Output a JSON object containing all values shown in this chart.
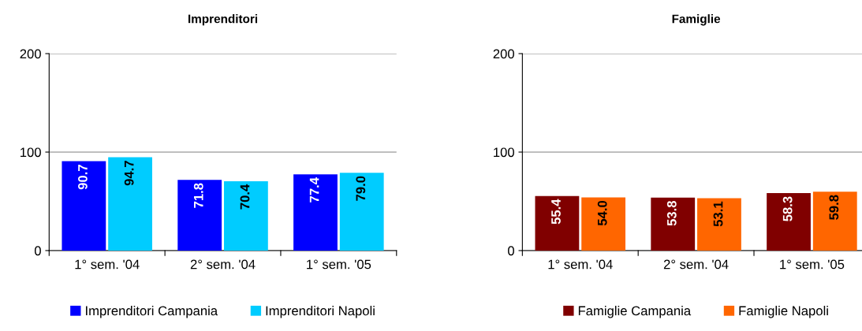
{
  "chart_data": [
    {
      "type": "bar",
      "title": "Imprenditori",
      "categories": [
        "1° sem. '04",
        "2° sem. '04",
        "1° sem. '05"
      ],
      "series": [
        {
          "name": "Imprenditori Campania",
          "color": "#0000ff",
          "values": [
            90.7,
            71.8,
            77.4
          ]
        },
        {
          "name": "Imprenditori Napoli",
          "color": "#00ccff",
          "values": [
            94.7,
            70.4,
            79.0
          ]
        }
      ],
      "ylim": [
        0,
        200
      ],
      "yticks": [
        0,
        100,
        200
      ],
      "grid": "y",
      "legend": "bottom",
      "value_labels": [
        [
          "90.7",
          "71.8",
          "77.4"
        ],
        [
          "94.7",
          "70.4",
          "79.0"
        ]
      ]
    },
    {
      "type": "bar",
      "title": "Famiglie",
      "categories": [
        "1° sem. '04",
        "2° sem. '04",
        "1° sem. '05"
      ],
      "series": [
        {
          "name": "Famiglie Campania",
          "color": "#800000",
          "values": [
            55.4,
            53.8,
            58.3
          ]
        },
        {
          "name": "Famiglie Napoli",
          "color": "#ff6600",
          "values": [
            54.0,
            53.1,
            59.8
          ]
        }
      ],
      "ylim": [
        0,
        200
      ],
      "yticks": [
        0,
        100,
        200
      ],
      "grid": "y",
      "legend": "bottom",
      "value_labels": [
        [
          "55.4",
          "53.8",
          "58.3"
        ],
        [
          "54.0",
          "53.1",
          "59.8"
        ]
      ]
    }
  ]
}
